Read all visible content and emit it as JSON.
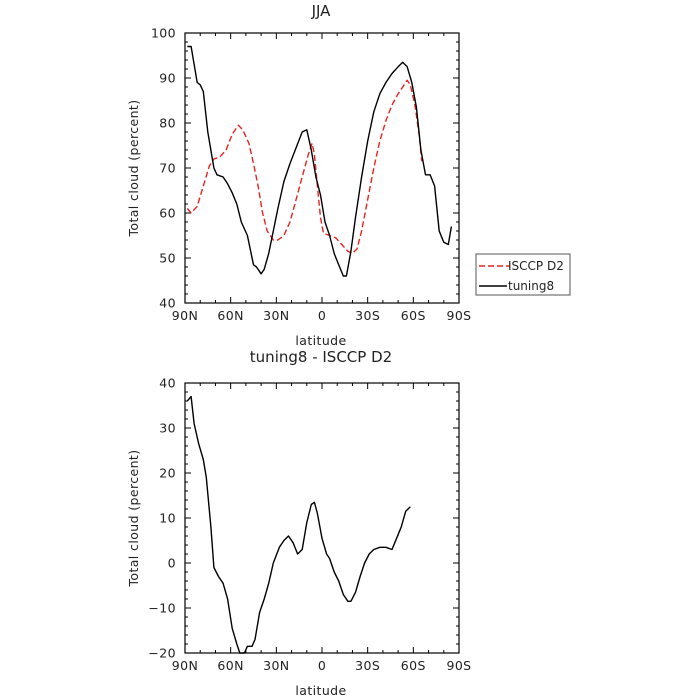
{
  "colors": {
    "ISCCP D2": "#e8231f",
    "tuning8": "#000000",
    "diff": "#000000"
  },
  "chart_data": [
    {
      "type": "line",
      "title": "JJA",
      "xlabel": "latitude",
      "ylabel": "Total cloud (percent)",
      "xlim": [
        90,
        -90
      ],
      "ylim": [
        40,
        100
      ],
      "xticks": [
        90,
        60,
        30,
        0,
        -30,
        -60,
        -90
      ],
      "xtick_labels": [
        "90N",
        "60N",
        "30N",
        "0",
        "30S",
        "60S",
        "90S"
      ],
      "yticks": [
        40,
        50,
        60,
        70,
        80,
        90,
        100
      ],
      "ytick_labels": [
        "40",
        "50",
        "60",
        "70",
        "80",
        "90",
        "100"
      ],
      "legend_position": "right",
      "series": [
        {
          "name": "ISCCP D2",
          "style": "dashed",
          "color": "#e8231f",
          "points": [
            [
              88.5,
              61
            ],
            [
              86,
              60
            ],
            [
              82,
              61.5
            ],
            [
              78,
              66
            ],
            [
              74,
              70.5
            ],
            [
              71,
              72
            ],
            [
              67,
              72.5
            ],
            [
              63,
              74
            ],
            [
              59,
              77.5
            ],
            [
              55,
              79.5
            ],
            [
              52,
              78.5
            ],
            [
              48,
              75.5
            ],
            [
              45,
              71
            ],
            [
              42,
              66
            ],
            [
              39,
              60
            ],
            [
              36,
              56
            ],
            [
              32,
              54
            ],
            [
              29,
              54
            ],
            [
              25,
              55
            ],
            [
              21,
              58
            ],
            [
              17,
              63
            ],
            [
              13,
              68
            ],
            [
              9,
              73
            ],
            [
              6.5,
              75.5
            ],
            [
              5,
              73
            ],
            [
              3,
              66
            ],
            [
              1,
              59
            ],
            [
              -1,
              55.5
            ],
            [
              -5,
              55
            ],
            [
              -9,
              54.5
            ],
            [
              -13,
              53
            ],
            [
              -17,
              51.5
            ],
            [
              -20,
              51
            ],
            [
              -23,
              52
            ],
            [
              -26,
              56
            ],
            [
              -30,
              63
            ],
            [
              -34,
              70
            ],
            [
              -38,
              76
            ],
            [
              -42,
              80.5
            ],
            [
              -46,
              84
            ],
            [
              -50,
              86.5
            ],
            [
              -54,
              88.5
            ],
            [
              -56,
              89.5
            ],
            [
              -58,
              88.5
            ],
            [
              -61,
              84
            ],
            [
              -64,
              77
            ],
            [
              -65.5,
              71.5
            ]
          ]
        },
        {
          "name": "tuning8",
          "style": "solid",
          "color": "#000000",
          "points": [
            [
              88.5,
              97
            ],
            [
              86,
              97
            ],
            [
              82,
              89
            ],
            [
              80,
              88.5
            ],
            [
              78,
              87
            ],
            [
              75,
              78
            ],
            [
              71,
              70
            ],
            [
              69,
              68.5
            ],
            [
              65,
              68
            ],
            [
              62,
              66.5
            ],
            [
              59,
              64.5
            ],
            [
              56,
              62
            ],
            [
              53,
              58
            ],
            [
              49,
              55
            ],
            [
              45,
              48.5
            ],
            [
              43,
              48
            ],
            [
              40,
              46.5
            ],
            [
              38,
              47.5
            ],
            [
              35,
              51
            ],
            [
              32,
              56
            ],
            [
              29,
              61
            ],
            [
              25,
              67
            ],
            [
              21,
              71
            ],
            [
              17,
              74.5
            ],
            [
              13,
              78
            ],
            [
              10,
              78.5
            ],
            [
              7,
              74
            ],
            [
              4,
              68
            ],
            [
              1,
              64
            ],
            [
              -2,
              58
            ],
            [
              -5,
              55
            ],
            [
              -8,
              51
            ],
            [
              -11,
              48.5
            ],
            [
              -14,
              46
            ],
            [
              -16,
              46
            ],
            [
              -19,
              51.5
            ],
            [
              -22,
              59
            ],
            [
              -26,
              68
            ],
            [
              -30,
              76
            ],
            [
              -34,
              82.5
            ],
            [
              -38,
              86.5
            ],
            [
              -42,
              89
            ],
            [
              -46,
              91
            ],
            [
              -50,
              92.5
            ],
            [
              -53,
              93.5
            ],
            [
              -56,
              92.5
            ],
            [
              -59,
              89
            ],
            [
              -62,
              83.5
            ],
            [
              -65,
              74
            ],
            [
              -68,
              68.5
            ],
            [
              -71,
              68.5
            ],
            [
              -74,
              66
            ],
            [
              -77,
              56
            ],
            [
              -80,
              53.5
            ],
            [
              -83,
              53
            ],
            [
              -85,
              57
            ]
          ]
        }
      ]
    },
    {
      "type": "line",
      "title": "tuning8 - ISCCP D2",
      "xlabel": "latitude",
      "ylabel": "Total cloud (percent)",
      "xlim": [
        90,
        -90
      ],
      "ylim": [
        -20,
        40
      ],
      "xticks": [
        90,
        60,
        30,
        0,
        -30,
        -60,
        -90
      ],
      "xtick_labels": [
        "90N",
        "60N",
        "30N",
        "0",
        "30S",
        "60S",
        "90S"
      ],
      "yticks": [
        -20,
        -10,
        0,
        10,
        20,
        30,
        40
      ],
      "ytick_labels": [
        "−20",
        "−10",
        "0",
        "10",
        "20",
        "30",
        "40"
      ],
      "series": [
        {
          "style": "solid",
          "color": "#000000",
          "points": [
            [
              88.5,
              36
            ],
            [
              86,
              37
            ],
            [
              84,
              31
            ],
            [
              81,
              26.5
            ],
            [
              78,
              23
            ],
            [
              76,
              19
            ],
            [
              73,
              8
            ],
            [
              71,
              -1
            ],
            [
              68,
              -3
            ],
            [
              65,
              -4.5
            ],
            [
              62,
              -8
            ],
            [
              59,
              -14.5
            ],
            [
              56,
              -18
            ],
            [
              54,
              -20
            ],
            [
              51,
              -20
            ],
            [
              49,
              -18.5
            ],
            [
              46,
              -18.5
            ],
            [
              44,
              -17
            ],
            [
              41,
              -11
            ],
            [
              38,
              -8
            ],
            [
              35,
              -4.5
            ],
            [
              32,
              0
            ],
            [
              28,
              3.5
            ],
            [
              25,
              5
            ],
            [
              22,
              6
            ],
            [
              19,
              4.5
            ],
            [
              16,
              2
            ],
            [
              13,
              3
            ],
            [
              10,
              9
            ],
            [
              7,
              13
            ],
            [
              5,
              13.5
            ],
            [
              3,
              11
            ],
            [
              0,
              5.5
            ],
            [
              -3,
              2
            ],
            [
              -5,
              1
            ],
            [
              -8,
              -2
            ],
            [
              -11,
              -4
            ],
            [
              -14,
              -7
            ],
            [
              -17,
              -8.5
            ],
            [
              -19,
              -8.5
            ],
            [
              -22,
              -6.5
            ],
            [
              -25,
              -3
            ],
            [
              -28,
              0
            ],
            [
              -31,
              2
            ],
            [
              -34,
              3
            ],
            [
              -38,
              3.5
            ],
            [
              -42,
              3.5
            ],
            [
              -46,
              3
            ],
            [
              -49,
              5.5
            ],
            [
              -52,
              8
            ],
            [
              -55,
              11.5
            ],
            [
              -58,
              12.5
            ]
          ]
        }
      ]
    }
  ]
}
